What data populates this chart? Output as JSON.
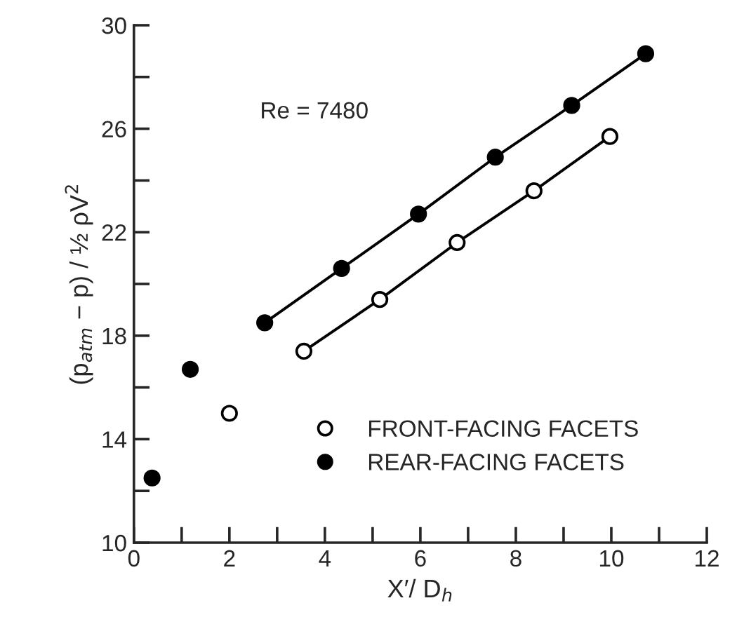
{
  "chart_data": {
    "type": "scatter",
    "xlabel": "X′/ D$_{h}$",
    "ylabel": "(p$_{atm}$ − p) / ½ ρV$^{2}$",
    "annotations": [
      "Re = 7480"
    ],
    "xlim": [
      0,
      12
    ],
    "ylim": [
      10,
      30
    ],
    "xticks": [
      0,
      {
        "value": 1,
        "label": null
      },
      2,
      {
        "value": 3,
        "label": null
      },
      4,
      {
        "value": 5,
        "label": null
      },
      6,
      {
        "value": 7,
        "label": null
      },
      8,
      {
        "value": 9,
        "label": null
      },
      10,
      {
        "value": 11,
        "label": null
      },
      12
    ],
    "yticks": [
      10,
      {
        "value": 12,
        "label": null
      },
      14,
      {
        "value": 16,
        "label": null
      },
      18,
      {
        "value": 20,
        "label": null
      },
      22,
      {
        "value": 24,
        "label": null
      },
      26,
      {
        "value": 28,
        "label": null
      },
      30
    ],
    "legend": "bottom right",
    "grid": false,
    "series": [
      {
        "name": "FRONT-FACING FACETS",
        "marker": "circle",
        "color": "#ffffff",
        "x": [
          2.0,
          3.56,
          5.15,
          6.77,
          8.38,
          9.97
        ],
        "values": [
          15.0,
          17.4,
          19.4,
          21.6,
          23.6,
          25.7
        ]
      },
      {
        "name": "REAR-FACING FACETS",
        "marker": "circle",
        "color": "#000000",
        "x": [
          0.38,
          1.18,
          2.74,
          4.35,
          5.96,
          7.57,
          9.17,
          10.72
        ],
        "values": [
          12.5,
          16.7,
          18.5,
          20.6,
          22.7,
          24.9,
          26.9,
          28.9
        ]
      },
      {
        "type": "line",
        "marker": "none",
        "color": "#000000",
        "x": [
          3.56,
          5.15,
          6.77,
          8.38,
          9.97
        ],
        "values": [
          17.4,
          19.4,
          21.6,
          23.6,
          25.7
        ]
      },
      {
        "type": "line",
        "marker": "none",
        "color": "#000000",
        "x": [
          2.74,
          4.35,
          5.96,
          7.57,
          9.17,
          10.72
        ],
        "values": [
          18.5,
          20.6,
          22.7,
          24.9,
          26.9,
          28.9
        ]
      }
    ]
  }
}
